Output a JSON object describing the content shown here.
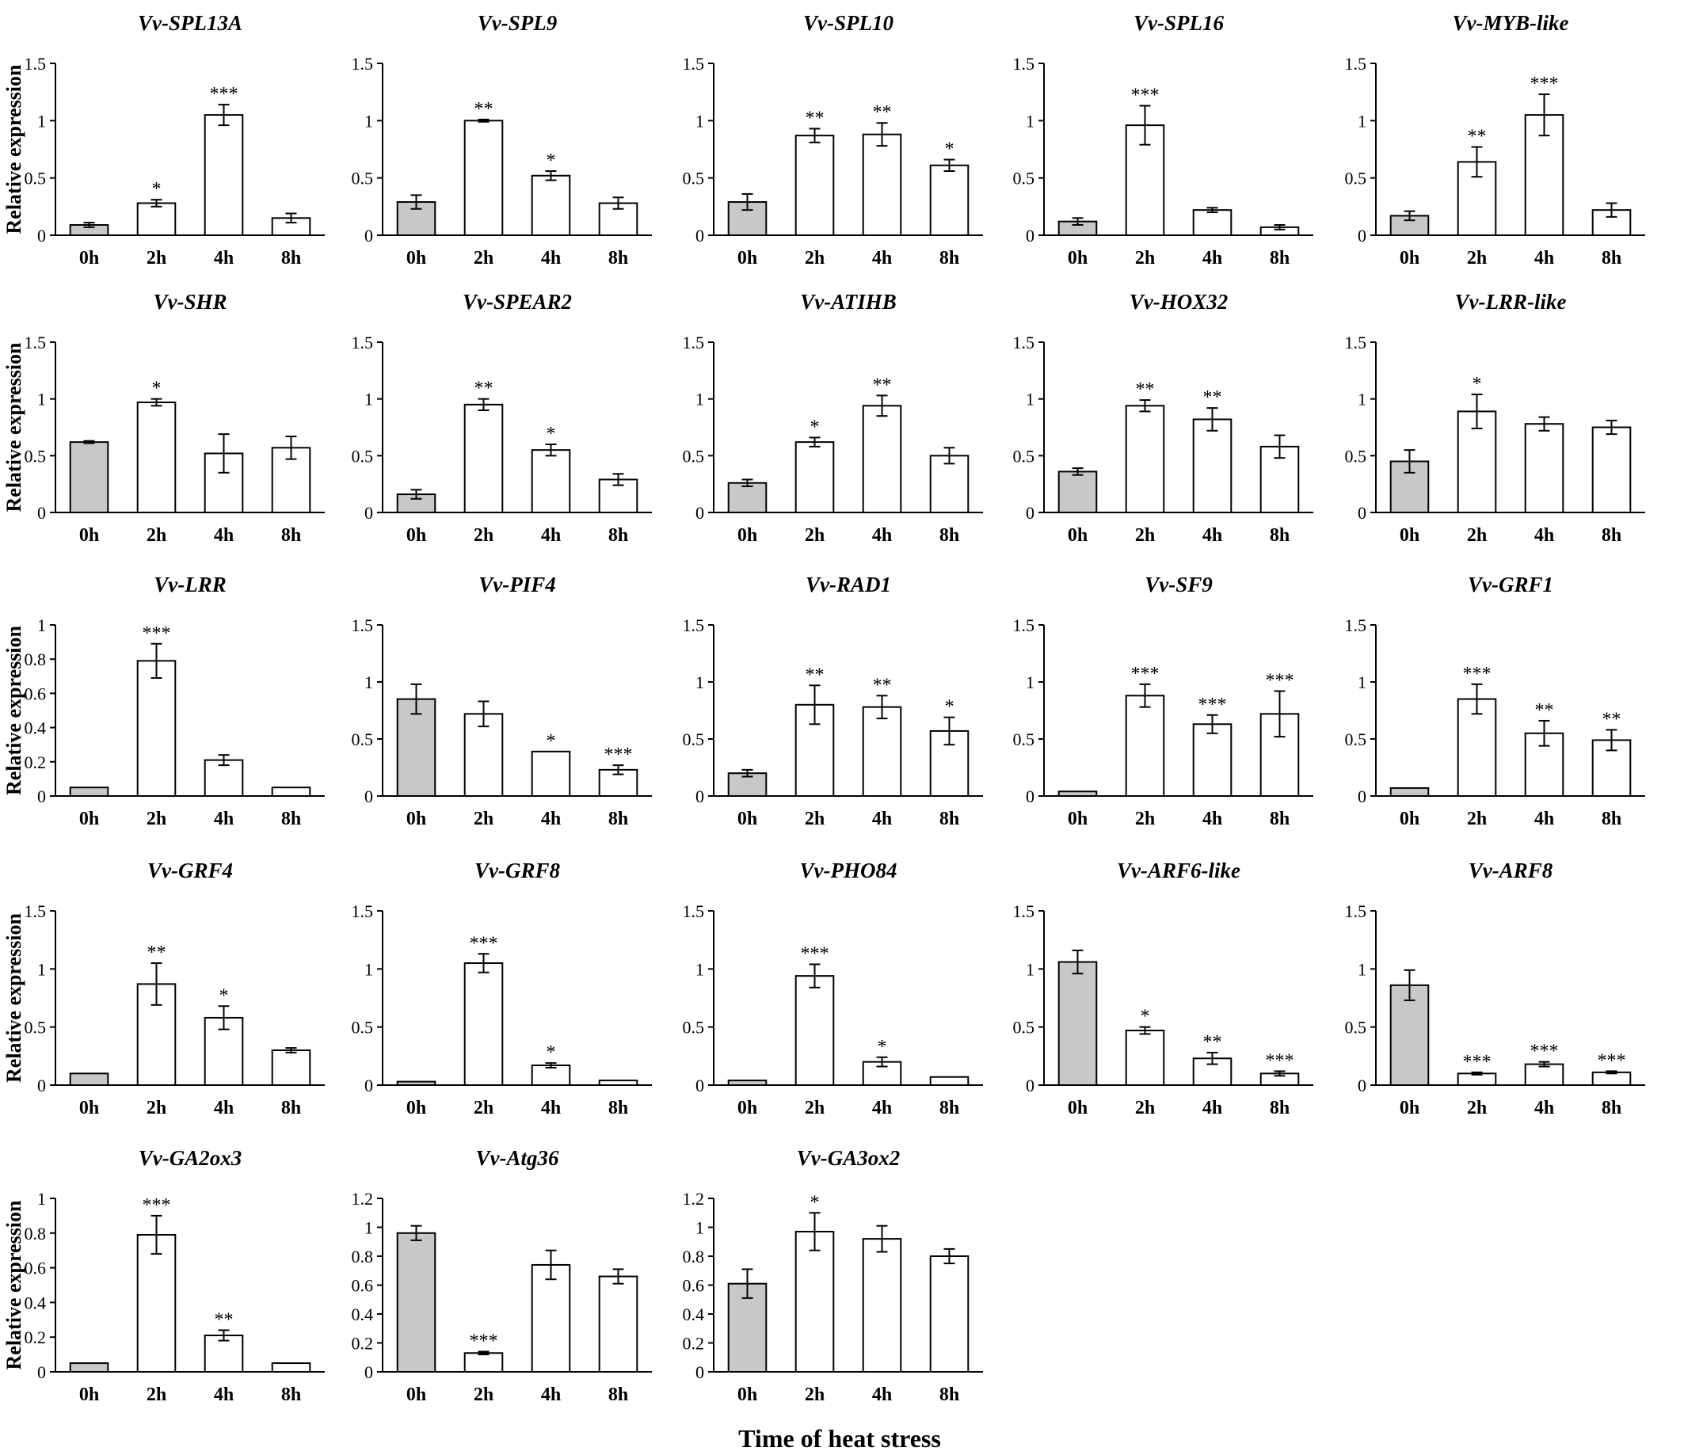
{
  "figure": {
    "x_axis_title": "Time of heat stress",
    "y_axis_title": "Relative expression",
    "colors": {
      "control_bar": "#c8c8c8",
      "treatment_bar": "#ffffff",
      "stroke": "#000000"
    }
  },
  "chart_data": [
    {
      "type": "bar",
      "title": "Vv-SPL13A",
      "categories": [
        "0h",
        "2h",
        "4h",
        "8h"
      ],
      "values": [
        0.09,
        0.28,
        1.05,
        0.15
      ],
      "errors": [
        0.02,
        0.03,
        0.09,
        0.04
      ],
      "significance": [
        "",
        "*",
        "***",
        ""
      ],
      "ylim": [
        0,
        1.5
      ],
      "yticks": [
        "0",
        "0.5",
        "1",
        "1.5"
      ],
      "ylabel": "Relative expression"
    },
    {
      "type": "bar",
      "title": "Vv-SPL9",
      "categories": [
        "0h",
        "2h",
        "4h",
        "8h"
      ],
      "values": [
        0.29,
        1.0,
        0.52,
        0.28
      ],
      "errors": [
        0.06,
        0.01,
        0.04,
        0.05
      ],
      "significance": [
        "",
        "**",
        "*",
        ""
      ],
      "ylim": [
        0,
        1.5
      ],
      "yticks": [
        "0",
        "0.5",
        "1",
        "1.5"
      ],
      "ylabel": ""
    },
    {
      "type": "bar",
      "title": "Vv-SPL10",
      "categories": [
        "0h",
        "2h",
        "4h",
        "8h"
      ],
      "values": [
        0.29,
        0.87,
        0.88,
        0.61
      ],
      "errors": [
        0.07,
        0.06,
        0.1,
        0.05
      ],
      "significance": [
        "",
        "**",
        "**",
        "*"
      ],
      "ylim": [
        0,
        1.5
      ],
      "yticks": [
        "0",
        "0.5",
        "1",
        "1.5"
      ],
      "ylabel": ""
    },
    {
      "type": "bar",
      "title": "Vv-SPL16",
      "categories": [
        "0h",
        "2h",
        "4h",
        "8h"
      ],
      "values": [
        0.12,
        0.96,
        0.22,
        0.07
      ],
      "errors": [
        0.03,
        0.17,
        0.02,
        0.02
      ],
      "significance": [
        "",
        "***",
        "",
        ""
      ],
      "ylim": [
        0,
        1.5
      ],
      "yticks": [
        "0",
        "0.5",
        "1",
        "1.5"
      ],
      "ylabel": ""
    },
    {
      "type": "bar",
      "title": "Vv-MYB-like",
      "categories": [
        "0h",
        "2h",
        "4h",
        "8h"
      ],
      "values": [
        0.17,
        0.64,
        1.05,
        0.22
      ],
      "errors": [
        0.04,
        0.13,
        0.18,
        0.06
      ],
      "significance": [
        "",
        "**",
        "***",
        ""
      ],
      "ylim": [
        0,
        1.5
      ],
      "yticks": [
        "0",
        "0.5",
        "1",
        "1.5"
      ],
      "ylabel": ""
    },
    {
      "type": "bar",
      "title": "Vv-SHR",
      "categories": [
        "0h",
        "2h",
        "4h",
        "8h"
      ],
      "values": [
        0.62,
        0.97,
        0.52,
        0.57
      ],
      "errors": [
        0.01,
        0.03,
        0.17,
        0.1
      ],
      "significance": [
        "",
        "*",
        "",
        ""
      ],
      "ylim": [
        0,
        1.5
      ],
      "yticks": [
        "0",
        "0.5",
        "1",
        "1.5"
      ],
      "ylabel": "Relative expression"
    },
    {
      "type": "bar",
      "title": "Vv-SPEAR2",
      "categories": [
        "0h",
        "2h",
        "4h",
        "8h"
      ],
      "values": [
        0.16,
        0.95,
        0.55,
        0.29
      ],
      "errors": [
        0.04,
        0.05,
        0.05,
        0.05
      ],
      "significance": [
        "",
        "**",
        "*",
        ""
      ],
      "ylim": [
        0,
        1.5
      ],
      "yticks": [
        "0",
        "0.5",
        "1",
        "1.5"
      ],
      "ylabel": ""
    },
    {
      "type": "bar",
      "title": "Vv-ATIHB",
      "categories": [
        "0h",
        "2h",
        "4h",
        "8h"
      ],
      "values": [
        0.26,
        0.62,
        0.94,
        0.5
      ],
      "errors": [
        0.03,
        0.04,
        0.09,
        0.07
      ],
      "significance": [
        "",
        "*",
        "**",
        ""
      ],
      "ylim": [
        0,
        1.5
      ],
      "yticks": [
        "0",
        "0.5",
        "1",
        "1.5"
      ],
      "ylabel": ""
    },
    {
      "type": "bar",
      "title": "Vv-HOX32",
      "categories": [
        "0h",
        "2h",
        "4h",
        "8h"
      ],
      "values": [
        0.36,
        0.94,
        0.82,
        0.58
      ],
      "errors": [
        0.03,
        0.05,
        0.1,
        0.1
      ],
      "significance": [
        "",
        "**",
        "**",
        ""
      ],
      "ylim": [
        0,
        1.5
      ],
      "yticks": [
        "0",
        "0.5",
        "1",
        "1.5"
      ],
      "ylabel": ""
    },
    {
      "type": "bar",
      "title": "Vv-LRR-like",
      "categories": [
        "0h",
        "2h",
        "4h",
        "8h"
      ],
      "values": [
        0.45,
        0.89,
        0.78,
        0.75
      ],
      "errors": [
        0.1,
        0.15,
        0.06,
        0.06
      ],
      "significance": [
        "",
        "*",
        "",
        ""
      ],
      "ylim": [
        0,
        1.5
      ],
      "yticks": [
        "0",
        "0.5",
        "1",
        "1.5"
      ],
      "ylabel": ""
    },
    {
      "type": "bar",
      "title": "Vv-LRR",
      "categories": [
        "0h",
        "2h",
        "4h",
        "8h"
      ],
      "values": [
        0.05,
        0.79,
        0.21,
        0.05
      ],
      "errors": [
        0.0,
        0.1,
        0.03,
        0.0
      ],
      "significance": [
        "",
        "***",
        "",
        ""
      ],
      "ylim": [
        0,
        1
      ],
      "yticks": [
        "0",
        "0.2",
        "0.4",
        "0.6",
        "0.8",
        "1"
      ],
      "ylabel": "Relative expression"
    },
    {
      "type": "bar",
      "title": "Vv-PIF4",
      "categories": [
        "0h",
        "2h",
        "4h",
        "8h"
      ],
      "values": [
        0.85,
        0.72,
        0.39,
        0.23
      ],
      "errors": [
        0.13,
        0.11,
        0.0,
        0.04
      ],
      "significance": [
        "",
        "",
        "*",
        "***"
      ],
      "ylim": [
        0,
        1.5
      ],
      "yticks": [
        "0",
        "0.5",
        "1",
        "1.5"
      ],
      "ylabel": ""
    },
    {
      "type": "bar",
      "title": "Vv-RAD1",
      "categories": [
        "0h",
        "2h",
        "4h",
        "8h"
      ],
      "values": [
        0.2,
        0.8,
        0.78,
        0.57
      ],
      "errors": [
        0.03,
        0.17,
        0.1,
        0.12
      ],
      "significance": [
        "",
        "**",
        "**",
        "*"
      ],
      "ylim": [
        0,
        1.5
      ],
      "yticks": [
        "0",
        "0.5",
        "1",
        "1.5"
      ],
      "ylabel": ""
    },
    {
      "type": "bar",
      "title": "Vv-SF9",
      "categories": [
        "0h",
        "2h",
        "4h",
        "8h"
      ],
      "values": [
        0.04,
        0.88,
        0.63,
        0.72
      ],
      "errors": [
        0.0,
        0.1,
        0.08,
        0.2
      ],
      "significance": [
        "",
        "***",
        "***",
        "***"
      ],
      "ylim": [
        0,
        1.5
      ],
      "yticks": [
        "0",
        "0.5",
        "1",
        "1.5"
      ],
      "ylabel": ""
    },
    {
      "type": "bar",
      "title": "Vv-GRF1",
      "categories": [
        "0h",
        "2h",
        "4h",
        "8h"
      ],
      "values": [
        0.07,
        0.85,
        0.55,
        0.49
      ],
      "errors": [
        0.0,
        0.13,
        0.11,
        0.09
      ],
      "significance": [
        "",
        "***",
        "**",
        "**"
      ],
      "ylim": [
        0,
        1.5
      ],
      "yticks": [
        "0",
        "0.5",
        "1",
        "1.5"
      ],
      "ylabel": ""
    },
    {
      "type": "bar",
      "title": "Vv-GRF4",
      "categories": [
        "0h",
        "2h",
        "4h",
        "8h"
      ],
      "values": [
        0.1,
        0.87,
        0.58,
        0.3
      ],
      "errors": [
        0.0,
        0.18,
        0.1,
        0.02
      ],
      "significance": [
        "",
        "**",
        "*",
        ""
      ],
      "ylim": [
        0,
        1.5
      ],
      "yticks": [
        "0",
        "0.5",
        "1",
        "1.5"
      ],
      "ylabel": "Relative expression"
    },
    {
      "type": "bar",
      "title": "Vv-GRF8",
      "categories": [
        "0h",
        "2h",
        "4h",
        "8h"
      ],
      "values": [
        0.03,
        1.05,
        0.17,
        0.04
      ],
      "errors": [
        0.0,
        0.08,
        0.02,
        0.0
      ],
      "significance": [
        "",
        "***",
        "*",
        ""
      ],
      "ylim": [
        0,
        1.5
      ],
      "yticks": [
        "0",
        "0.5",
        "1",
        "1.5"
      ],
      "ylabel": ""
    },
    {
      "type": "bar",
      "title": "Vv-PHO84",
      "categories": [
        "0h",
        "2h",
        "4h",
        "8h"
      ],
      "values": [
        0.04,
        0.94,
        0.2,
        0.07
      ],
      "errors": [
        0.0,
        0.1,
        0.04,
        0.0
      ],
      "significance": [
        "",
        "***",
        "*",
        ""
      ],
      "ylim": [
        0,
        1.5
      ],
      "yticks": [
        "0",
        "0.5",
        "1",
        "1.5"
      ],
      "ylabel": ""
    },
    {
      "type": "bar",
      "title": "Vv-ARF6-like",
      "categories": [
        "0h",
        "2h",
        "4h",
        "8h"
      ],
      "values": [
        1.06,
        0.47,
        0.23,
        0.1
      ],
      "errors": [
        0.1,
        0.03,
        0.05,
        0.02
      ],
      "significance": [
        "",
        "*",
        "**",
        "***"
      ],
      "ylim": [
        0,
        1.5
      ],
      "yticks": [
        "0",
        "0.5",
        "1",
        "1.5"
      ],
      "ylabel": ""
    },
    {
      "type": "bar",
      "title": "Vv-ARF8",
      "categories": [
        "0h",
        "2h",
        "4h",
        "8h"
      ],
      "values": [
        0.86,
        0.1,
        0.18,
        0.11
      ],
      "errors": [
        0.13,
        0.01,
        0.02,
        0.01
      ],
      "significance": [
        "",
        "***",
        "***",
        "***"
      ],
      "ylim": [
        0,
        1.5
      ],
      "yticks": [
        "0",
        "0.5",
        "1",
        "1.5"
      ],
      "ylabel": ""
    },
    {
      "type": "bar",
      "title": "Vv-GA2ox3",
      "categories": [
        "0h",
        "2h",
        "4h",
        "8h"
      ],
      "values": [
        0.05,
        0.79,
        0.21,
        0.05
      ],
      "errors": [
        0.0,
        0.11,
        0.03,
        0.0
      ],
      "significance": [
        "",
        "***",
        "**",
        ""
      ],
      "ylim": [
        0,
        1
      ],
      "yticks": [
        "0",
        "0.2",
        "0.4",
        "0.6",
        "0.8",
        "1"
      ],
      "ylabel": "Relative expression"
    },
    {
      "type": "bar",
      "title": "Vv-Atg36",
      "categories": [
        "0h",
        "2h",
        "4h",
        "8h"
      ],
      "values": [
        0.96,
        0.13,
        0.74,
        0.66
      ],
      "errors": [
        0.05,
        0.01,
        0.1,
        0.05
      ],
      "significance": [
        "",
        "***",
        "",
        ""
      ],
      "ylim": [
        0,
        1.2
      ],
      "yticks": [
        "0",
        "0.2",
        "0.4",
        "0.6",
        "0.8",
        "1",
        "1.2"
      ],
      "ylabel": ""
    },
    {
      "type": "bar",
      "title": "Vv-GA3ox2",
      "categories": [
        "0h",
        "2h",
        "4h",
        "8h"
      ],
      "values": [
        0.61,
        0.97,
        0.92,
        0.8
      ],
      "errors": [
        0.1,
        0.13,
        0.09,
        0.05
      ],
      "significance": [
        "",
        "*",
        "",
        ""
      ],
      "ylim": [
        0,
        1.2
      ],
      "yticks": [
        "0",
        "0.2",
        "0.4",
        "0.6",
        "0.8",
        "1",
        "1.2"
      ],
      "ylabel": ""
    }
  ]
}
